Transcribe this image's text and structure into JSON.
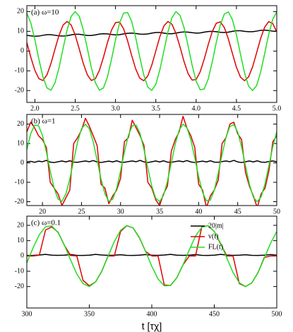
{
  "chart_data": [
    {
      "type": "line",
      "annotation": "(a) ω=10",
      "x": [
        1.9,
        1.95,
        2,
        2.05,
        2.1,
        2.15,
        2.2,
        2.25,
        2.3,
        2.35,
        2.4,
        2.45,
        2.5,
        2.55,
        2.6,
        2.65,
        2.7,
        2.75,
        2.8,
        2.85,
        2.9,
        2.95,
        3,
        3.05,
        3.1,
        3.15,
        3.2,
        3.25,
        3.3,
        3.35,
        3.4,
        3.45,
        3.5,
        3.55,
        3.6,
        3.65,
        3.7,
        3.75,
        3.8,
        3.85,
        3.9,
        3.95,
        4,
        4.05,
        4.1,
        4.15,
        4.2,
        4.25,
        4.3,
        4.35,
        4.4,
        4.45,
        4.5,
        4.55,
        4.6,
        4.65,
        4.7,
        4.75,
        4.8,
        4.85,
        4.9,
        4.95,
        5
      ],
      "series": [
        {
          "color": "#000000",
          "values": [
            8.0,
            7.7,
            7.5,
            7.6,
            8.0,
            8.3,
            8.3,
            8.0,
            7.7,
            7.6,
            7.8,
            8.2,
            8.5,
            8.5,
            8.2,
            7.9,
            7.9,
            8.2,
            8.6,
            8.8,
            8.7,
            8.4,
            8.2,
            8.3,
            8.7,
            9.0,
            9.1,
            8.9,
            8.6,
            8.5,
            8.7,
            9.1,
            9.4,
            9.4,
            9.1,
            8.8,
            8.8,
            9.1,
            9.5,
            9.7,
            9.6,
            9.3,
            9.1,
            9.2,
            9.6,
            9.9,
            10.0,
            9.8,
            9.5,
            9.4,
            9.6,
            10.0,
            10.3,
            10.3,
            10.0,
            9.8,
            9.8,
            10.1,
            10.5,
            10.6,
            10.4,
            10.1,
            10.0
          ]
        },
        {
          "color": "#e00000",
          "values": [
            4.3,
            -3.2,
            -9.8,
            -14.0,
            -14.9,
            -12.0,
            -6.2,
            1.1,
            8.1,
            13.2,
            15,
            13.2,
            8.1,
            1.1,
            -6.2,
            -12.0,
            -14.9,
            -14.0,
            -9.8,
            -3.2,
            4.3,
            10.6,
            14.4,
            14.7,
            11.3,
            5.2,
            -2.2,
            -9.0,
            -13.7,
            -15.0,
            -12.6,
            -7.1,
            0.1,
            7.3,
            12.7,
            15.0,
            13.6,
            8.9,
            2.1,
            -5.3,
            -11.4,
            -14.7,
            -14.4,
            -10.5,
            -4.1,
            3.3,
            9.9,
            14.1,
            14.8,
            11.9,
            6.1,
            -1.2,
            -8.2,
            -13.2,
            -15.0,
            -13.1,
            -8.0,
            -0.9,
            6.4,
            12.1,
            14.9,
            14.0,
            9.7
          ]
        },
        {
          "color": "#22dd22",
          "values": [
            19.2,
            14.2,
            5.7,
            -4.2,
            -13.1,
            -18.7,
            -19.8,
            -16.0,
            -8.3,
            1.4,
            10.8,
            17.6,
            20,
            17.6,
            10.8,
            1.4,
            -8.3,
            -16.0,
            -19.8,
            -18.7,
            -13.1,
            -4.2,
            5.7,
            14.2,
            19.2,
            19.5,
            15.1,
            6.9,
            -2.9,
            -12.0,
            -18.2,
            -19.9,
            -16.8,
            -9.5,
            0.1,
            9.7,
            16.9,
            20.0,
            18.1,
            11.9,
            2.7,
            -7.1,
            -15.2,
            -19.6,
            -19.2,
            -14.1,
            -5.5,
            4.4,
            13.2,
            18.8,
            19.8,
            15.9,
            8.2,
            -1.6,
            -11.0,
            -17.7,
            -20.0,
            -17.5,
            -10.7,
            -1.3,
            8.5,
            16.1,
            19.8
          ]
        }
      ],
      "xlim": [
        1.9,
        5.0
      ],
      "ylim": [
        -26,
        23
      ],
      "xticks": [
        {
          "value": 2,
          "label": "2.0"
        },
        2.5,
        {
          "value": 3,
          "label": "3.0"
        },
        3.5,
        {
          "value": 4,
          "label": "4.0"
        },
        4.5,
        {
          "value": 5,
          "label": "5.0"
        }
      ],
      "yticks": [
        20,
        10,
        0,
        -10,
        -20
      ]
    },
    {
      "type": "line",
      "annotation": "(b) ω=1",
      "x": [
        18,
        18.5,
        19,
        19.5,
        20,
        20.5,
        21,
        21.5,
        22,
        22.5,
        23,
        23.5,
        24,
        24.5,
        25,
        25.5,
        26,
        26.5,
        27,
        27.5,
        28,
        28.5,
        29,
        29.5,
        30,
        30.5,
        31,
        31.5,
        32,
        32.5,
        33,
        33.5,
        34,
        34.5,
        35,
        35.5,
        36,
        36.5,
        37,
        37.5,
        38,
        38.5,
        39,
        39.5,
        40,
        40.5,
        41,
        41.5,
        42,
        42.5,
        43,
        43.5,
        44,
        44.5,
        45,
        45.5,
        46,
        46.5,
        47,
        47.5,
        48,
        48.5,
        49,
        49.5,
        50
      ],
      "series": [
        {
          "color": "#000000",
          "values": [
            0.5,
            0.8,
            0.3,
            0.9,
            0.6,
            1.3,
            0.4,
            0.2,
            0.6,
            1.0,
            0.5,
            1.1,
            0.4,
            0.3,
            0.7,
            1.0,
            0.6,
            1.2,
            0.5,
            0.2,
            0.6,
            0.9,
            0.5,
            1.1,
            0.4,
            0.3,
            0.7,
            1.0,
            0.6,
            1.3,
            0.5,
            0.2,
            0.6,
            1.0,
            0.5,
            1.1,
            0.4,
            0.3,
            0.7,
            1.0,
            0.6,
            1.2,
            0.5,
            0.2,
            0.6,
            0.9,
            0.5,
            1.1,
            0.4,
            0.3,
            0.7,
            1.0,
            0.6,
            1.3,
            0.5,
            0.2,
            0.6,
            1.0,
            0.5,
            1.1,
            0.4,
            0.3,
            0.7,
            1.0,
            0.6
          ]
        },
        {
          "color": "#e00000",
          "values": [
            16,
            21,
            18,
            14,
            12,
            8,
            -10,
            -13,
            -16,
            -22,
            -18,
            -14,
            10,
            13,
            17,
            23,
            19,
            14,
            9,
            -11,
            -13,
            -21,
            -17,
            -14,
            -8,
            11,
            13,
            22,
            18,
            14,
            9,
            -10,
            -13,
            -19,
            -22,
            -16,
            -12,
            6,
            12,
            16,
            24,
            18,
            14,
            8,
            -11,
            -14,
            -23,
            -17,
            -14,
            -9,
            10,
            13,
            20,
            21,
            15,
            12,
            -5,
            -12,
            -17,
            -23,
            -16,
            -13,
            -4,
            11,
            14
          ]
        },
        {
          "color": "#22dd22",
          "values": [
            6.9,
            15.1,
            19.5,
            19.2,
            14.2,
            5.7,
            -4.2,
            -13.1,
            -18.7,
            -19.8,
            -16.0,
            -8.3,
            1.4,
            10.8,
            17.6,
            20,
            17.6,
            10.8,
            1.4,
            -8.3,
            -16.0,
            -19.8,
            -18.7,
            -13.1,
            -4.2,
            5.7,
            14.2,
            19.2,
            19.5,
            15.1,
            6.9,
            -2.9,
            -12.0,
            -18.2,
            -19.9,
            -16.8,
            -9.5,
            0.1,
            9.7,
            16.9,
            20.0,
            18.1,
            11.9,
            2.7,
            -7.1,
            -15.2,
            -19.6,
            -19.2,
            -14.1,
            -5.5,
            4.4,
            13.2,
            18.8,
            19.8,
            15.9,
            8.2,
            -1.6,
            -11.0,
            -17.7,
            -20.0,
            -17.5,
            -10.7,
            -1.3,
            8.5,
            16.1
          ]
        }
      ],
      "xlim": [
        18,
        50
      ],
      "ylim": [
        -22,
        25
      ],
      "xticks": [
        20,
        25,
        30,
        35,
        40,
        45,
        50
      ],
      "yticks": [
        20,
        10,
        0,
        -10,
        -20
      ]
    },
    {
      "type": "line",
      "annotation": "(c) ω=0.1",
      "x_label": "t [τχ]",
      "legend": "upper right",
      "x": [
        300,
        305,
        310,
        315,
        320,
        325,
        330,
        335,
        340,
        345,
        350,
        355,
        360,
        365,
        370,
        375,
        380,
        385,
        390,
        395,
        400,
        405,
        410,
        415,
        420,
        425,
        430,
        435,
        440,
        445,
        450,
        455,
        460,
        465,
        470,
        475,
        480,
        485,
        490,
        495,
        500
      ],
      "series": [
        {
          "name": "20|m|",
          "color": "#000000",
          "values": [
            0.3,
            0.4,
            0.6,
            1.0,
            0.5,
            0.4,
            0.5,
            0.9,
            0.4,
            0.3,
            0.5,
            1.0,
            0.6,
            0.4,
            0.5,
            0.8,
            0.4,
            0.3,
            0.5,
            0.9,
            0.5,
            0.4,
            0.6,
            1.0,
            0.5,
            0.4,
            0.5,
            0.9,
            0.4,
            0.3,
            0.5,
            1.0,
            0.6,
            0.4,
            0.5,
            0.8,
            0.4,
            0.3,
            0.5,
            0.9,
            0.5
          ]
        },
        {
          "name": "v(t)",
          "color": "#e00000",
          "values": [
            0,
            0,
            0.5,
            17,
            19,
            15.5,
            7,
            0.3,
            0,
            -16,
            -19.5,
            -17,
            -10,
            0,
            0,
            16,
            19.8,
            18.3,
            12,
            3,
            0,
            0,
            -19,
            -19.3,
            -14.3,
            -5.8,
            0,
            0,
            19,
            19.8,
            16,
            8,
            0,
            0,
            -18,
            -20,
            -17.6,
            -10.9,
            -1,
            0,
            0
          ]
        },
        {
          "name": "FL(t)",
          "color": "#22dd22",
          "values": [
            -4.5,
            5.3,
            13.9,
            19.1,
            19.6,
            15.3,
            7.2,
            -2.6,
            -11.8,
            -18.1,
            -20.0,
            -17.0,
            -9.8,
            -0.2,
            9.4,
            16.7,
            19.9,
            18.3,
            12.2,
            3.1,
            -6.8,
            -15.0,
            -19.5,
            -19.3,
            -14.3,
            -5.8,
            4.0,
            13.0,
            18.7,
            19.8,
            16.1,
            8.4,
            -1.3,
            -10.8,
            -17.5,
            -20.0,
            -17.6,
            -10.9,
            -1.5,
            8.2,
            16.0
          ]
        }
      ],
      "xlim": [
        300,
        500
      ],
      "ylim": [
        -34,
        26
      ],
      "xticks": [
        300,
        350,
        400,
        450,
        500
      ],
      "yticks": [
        20,
        10,
        0,
        -10,
        -20
      ]
    }
  ]
}
